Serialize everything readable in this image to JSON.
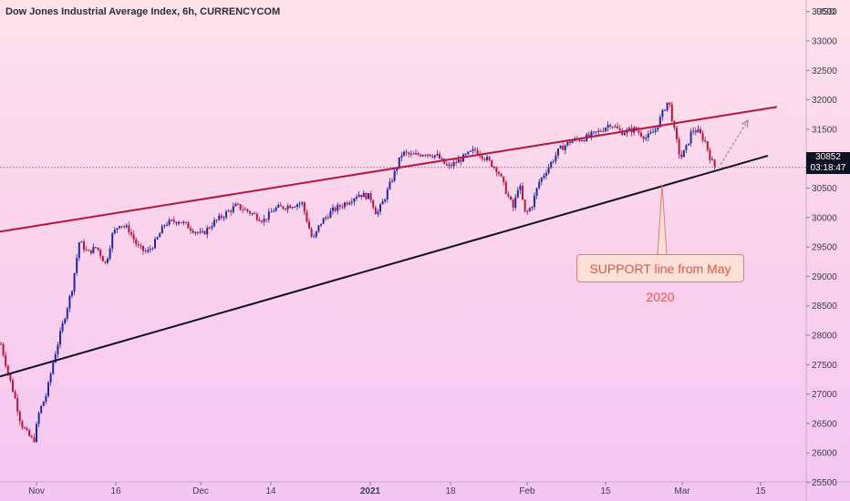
{
  "title": "Dow Jones Industrial Average Index, 6h, CURRENCYCOM",
  "currency": "USD",
  "price_label": "30852",
  "countdown_label": "03:18:47",
  "annotation": "SUPPORT line from May 2020",
  "colors": {
    "up": "#1f2a9e",
    "down": "#b4163e",
    "resistance": "#b4163e",
    "support": "#0e1024",
    "arrow": "#8a8aa0"
  },
  "chart_data": {
    "type": "candlestick",
    "symbol": "Dow Jones Industrial Average Index",
    "timeframe": "6h",
    "x_ticks": [
      "Nov",
      "16",
      "Dec",
      "14",
      "2021",
      "18",
      "Feb",
      "15",
      "Mar",
      "15"
    ],
    "bold_x_ticks": [
      "2021"
    ],
    "y_ticks": [
      25500,
      26000,
      26500,
      27000,
      27500,
      28000,
      28500,
      29000,
      29500,
      30000,
      30500,
      31000,
      31500,
      32000,
      32500,
      33000,
      33500
    ],
    "ylim": [
      25400,
      33650
    ],
    "last_price": 30852,
    "price_path": [
      {
        "x": 0,
        "v": 27850
      },
      {
        "x": 8,
        "v": 27350
      },
      {
        "x": 16,
        "v": 26900
      },
      {
        "x": 22,
        "v": 26500
      },
      {
        "x": 30,
        "v": 26300
      },
      {
        "x": 36,
        "v": 26200
      },
      {
        "x": 42,
        "v": 26700
      },
      {
        "x": 50,
        "v": 27000
      },
      {
        "x": 58,
        "v": 27600
      },
      {
        "x": 68,
        "v": 28200
      },
      {
        "x": 78,
        "v": 28800
      },
      {
        "x": 86,
        "v": 29600
      },
      {
        "x": 95,
        "v": 29400
      },
      {
        "x": 105,
        "v": 29500
      },
      {
        "x": 115,
        "v": 29200
      },
      {
        "x": 122,
        "v": 29700
      },
      {
        "x": 130,
        "v": 29900
      },
      {
        "x": 140,
        "v": 29800
      },
      {
        "x": 150,
        "v": 29500
      },
      {
        "x": 160,
        "v": 29400
      },
      {
        "x": 170,
        "v": 29600
      },
      {
        "x": 180,
        "v": 29900
      },
      {
        "x": 195,
        "v": 29950
      },
      {
        "x": 210,
        "v": 29800
      },
      {
        "x": 220,
        "v": 29700
      },
      {
        "x": 232,
        "v": 29900
      },
      {
        "x": 245,
        "v": 30050
      },
      {
        "x": 258,
        "v": 30200
      },
      {
        "x": 272,
        "v": 30100
      },
      {
        "x": 288,
        "v": 29950
      },
      {
        "x": 300,
        "v": 30150
      },
      {
        "x": 315,
        "v": 30200
      },
      {
        "x": 330,
        "v": 30250
      },
      {
        "x": 342,
        "v": 29600
      },
      {
        "x": 350,
        "v": 29900
      },
      {
        "x": 362,
        "v": 30100
      },
      {
        "x": 378,
        "v": 30250
      },
      {
        "x": 392,
        "v": 30400
      },
      {
        "x": 405,
        "v": 30350
      },
      {
        "x": 412,
        "v": 30050
      },
      {
        "x": 420,
        "v": 30300
      },
      {
        "x": 430,
        "v": 30700
      },
      {
        "x": 440,
        "v": 31100
      },
      {
        "x": 452,
        "v": 31050
      },
      {
        "x": 465,
        "v": 31100
      },
      {
        "x": 478,
        "v": 31050
      },
      {
        "x": 490,
        "v": 30850
      },
      {
        "x": 500,
        "v": 30950
      },
      {
        "x": 510,
        "v": 31050
      },
      {
        "x": 520,
        "v": 31150
      },
      {
        "x": 532,
        "v": 31000
      },
      {
        "x": 545,
        "v": 30800
      },
      {
        "x": 555,
        "v": 30400
      },
      {
        "x": 562,
        "v": 30150
      },
      {
        "x": 568,
        "v": 30600
      },
      {
        "x": 575,
        "v": 30050
      },
      {
        "x": 582,
        "v": 30200
      },
      {
        "x": 590,
        "v": 30600
      },
      {
        "x": 600,
        "v": 30850
      },
      {
        "x": 612,
        "v": 31150
      },
      {
        "x": 625,
        "v": 31300
      },
      {
        "x": 640,
        "v": 31350
      },
      {
        "x": 655,
        "v": 31450
      },
      {
        "x": 668,
        "v": 31600
      },
      {
        "x": 680,
        "v": 31450
      },
      {
        "x": 695,
        "v": 31500
      },
      {
        "x": 708,
        "v": 31350
      },
      {
        "x": 718,
        "v": 31500
      },
      {
        "x": 726,
        "v": 31800
      },
      {
        "x": 732,
        "v": 32000
      },
      {
        "x": 738,
        "v": 31500
      },
      {
        "x": 745,
        "v": 31000
      },
      {
        "x": 752,
        "v": 31200
      },
      {
        "x": 758,
        "v": 31500
      },
      {
        "x": 765,
        "v": 31450
      },
      {
        "x": 772,
        "v": 31300
      },
      {
        "x": 778,
        "v": 31000
      },
      {
        "x": 783,
        "v": 30850
      }
    ],
    "trendlines": [
      {
        "role": "resistance",
        "x1": 0,
        "v1": 29760,
        "x2": 852,
        "v2": 31880
      },
      {
        "role": "support",
        "x1": 0,
        "v1": 27300,
        "x2": 842,
        "v2": 31050
      }
    ],
    "projection_arrow": {
      "x1": 790,
      "v1": 30900,
      "x2": 820,
      "v2": 31650
    },
    "callout_pointer": {
      "x": 726,
      "v": 30560
    }
  }
}
